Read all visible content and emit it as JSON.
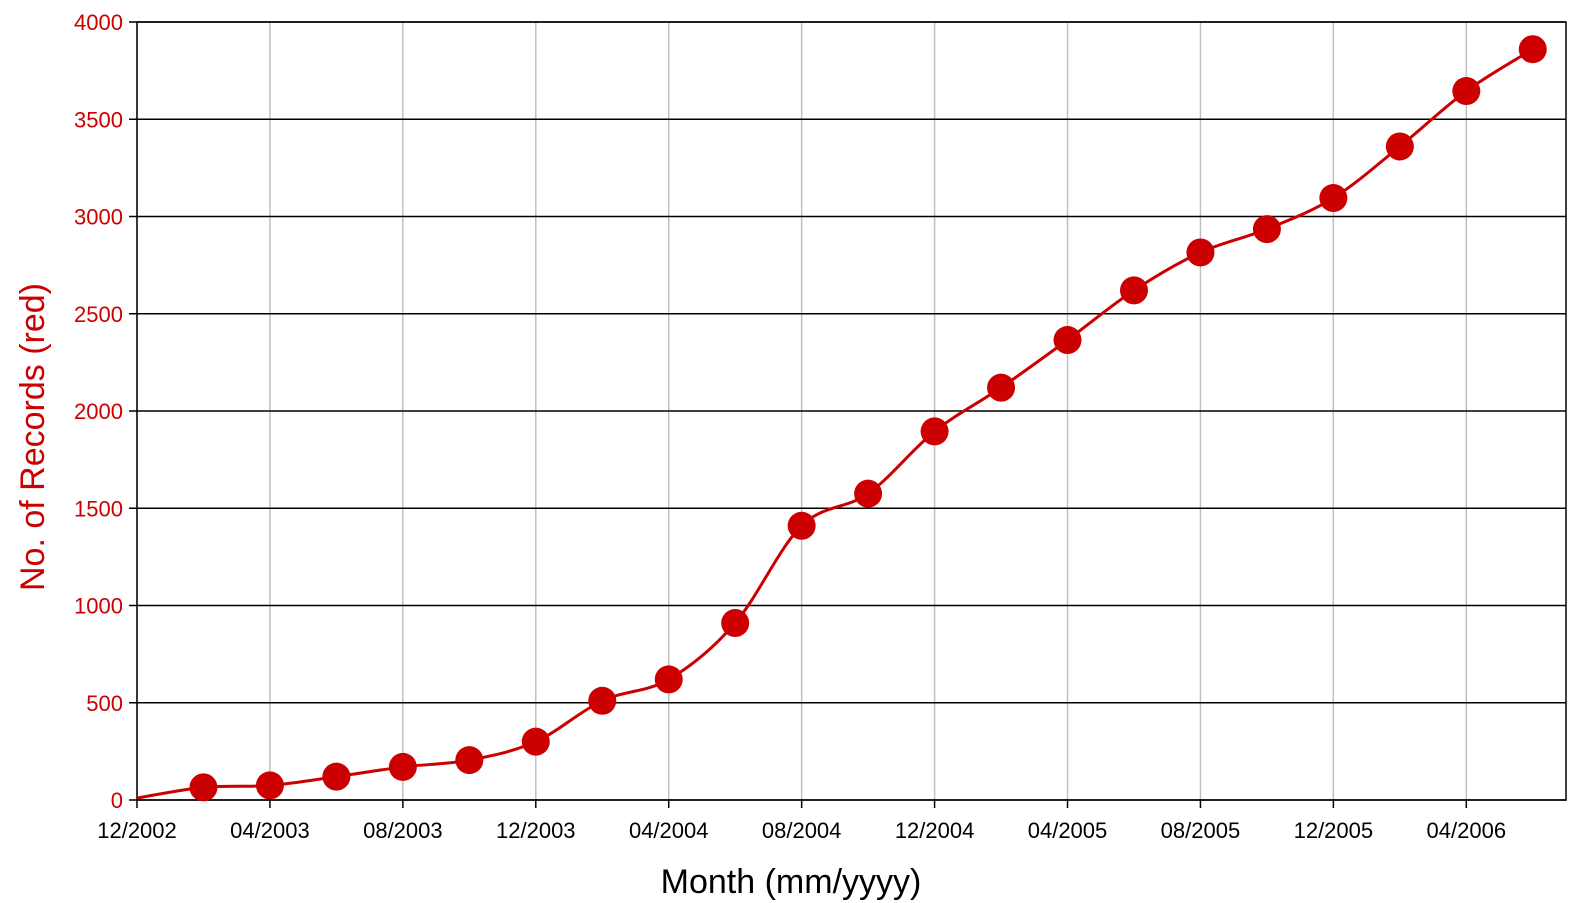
{
  "chart_data": {
    "type": "line",
    "title": "",
    "xlabel": "Month (mm/yyyy)",
    "ylabel": "No. of Records (red)",
    "ylim": [
      0,
      4000
    ],
    "xlim": [
      "12/2002",
      "07/2006"
    ],
    "yticks": [
      "0",
      "500",
      "1000",
      "1500",
      "2000",
      "2500",
      "3000",
      "3500",
      "4000"
    ],
    "xticks": [
      "12/2002",
      "04/2003",
      "08/2003",
      "12/2003",
      "04/2004",
      "08/2004",
      "12/2004",
      "04/2005",
      "08/2005",
      "12/2005",
      "04/2006"
    ],
    "grid": {
      "horizontal": true,
      "vertical": true
    },
    "series": [
      {
        "color": "#cc0000",
        "marker": "filled-circle",
        "x": [
          "12/2002",
          "02/2003",
          "04/2003",
          "06/2003",
          "08/2003",
          "10/2003",
          "12/2003",
          "02/2004",
          "04/2004",
          "06/2004",
          "08/2004",
          "10/2004",
          "12/2004",
          "02/2005",
          "04/2005",
          "06/2005",
          "08/2005",
          "10/2005",
          "12/2005",
          "02/2006",
          "04/2006",
          "06/2006"
        ],
        "values": [
          10,
          65,
          75,
          120,
          170,
          205,
          300,
          510,
          620,
          910,
          1410,
          1575,
          1895,
          2120,
          2365,
          2620,
          2815,
          2935,
          3095,
          3360,
          3645,
          3860
        ],
        "markers_start_index": 1
      }
    ]
  },
  "colors": {
    "series": "#cc0000",
    "y_axis_text": "#cc0000",
    "x_axis_text": "#000000",
    "major_grid": "#000000",
    "minor_grid": "#c0c0c0"
  }
}
